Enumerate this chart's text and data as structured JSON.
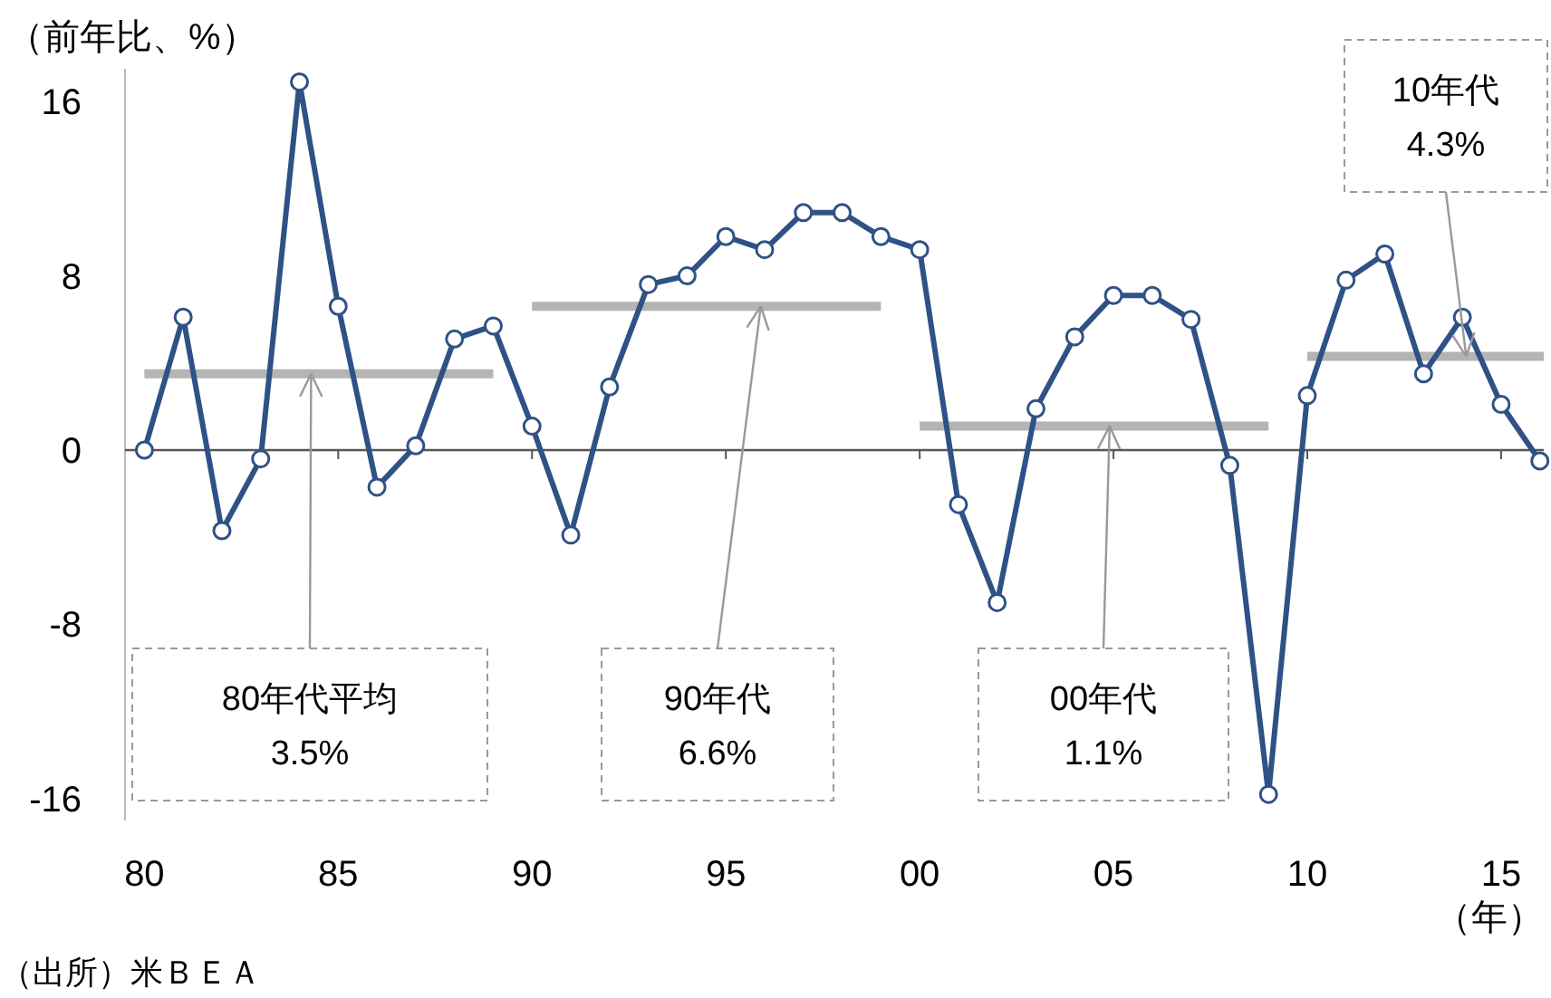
{
  "chart_data": {
    "type": "line",
    "ylabel": "（前年比、%）",
    "xlabel": "（年）",
    "x": [
      1980,
      1981,
      1982,
      1983,
      1984,
      1985,
      1986,
      1987,
      1988,
      1989,
      1990,
      1991,
      1992,
      1993,
      1994,
      1995,
      1996,
      1997,
      1998,
      1999,
      2000,
      2001,
      2002,
      2003,
      2004,
      2005,
      2006,
      2007,
      2008,
      2009,
      2010,
      2011,
      2012,
      2013,
      2014,
      2015,
      2016
    ],
    "xlim": [
      1979.5,
      2016.1
    ],
    "xticks": [
      {
        "value": 1980,
        "label": "80"
      },
      {
        "value": 1985,
        "label": "85"
      },
      {
        "value": 1990,
        "label": "90"
      },
      {
        "value": 1995,
        "label": "95"
      },
      {
        "value": 2000,
        "label": "00"
      },
      {
        "value": 2005,
        "label": "05"
      },
      {
        "value": 2010,
        "label": "10"
      },
      {
        "value": 2015,
        "label": "15"
      }
    ],
    "ylim": [
      -17,
      17.5
    ],
    "yticks": [
      -16,
      -8,
      0,
      8,
      16
    ],
    "series": [
      {
        "color": "#2f5286",
        "marker": "circle",
        "values": [
          0,
          6.1,
          -3.7,
          -0.4,
          16.9,
          6.6,
          -1.7,
          0.2,
          5.1,
          5.7,
          1.1,
          -3.9,
          2.9,
          7.6,
          8.0,
          9.8,
          9.2,
          10.9,
          10.9,
          9.8,
          9.2,
          -2.5,
          -7.0,
          1.9,
          5.2,
          7.1,
          7.1,
          6.0,
          -0.7,
          -15.8,
          2.5,
          7.8,
          9.0,
          3.5,
          6.1,
          2.1,
          -0.5
        ]
      },
      {
        "color": "#b4b4b4",
        "marker": "none",
        "x": [
          1980,
          1989
        ],
        "values": [
          3.5,
          3.5
        ]
      },
      {
        "color": "#b4b4b4",
        "marker": "none",
        "x": [
          1990,
          1999
        ],
        "values": [
          6.6,
          6.6
        ]
      },
      {
        "color": "#b4b4b4",
        "marker": "none",
        "x": [
          2000,
          2009
        ],
        "values": [
          1.1,
          1.1
        ]
      },
      {
        "color": "#b4b4b4",
        "marker": "none",
        "x": [
          2010,
          2016.1
        ],
        "values": [
          4.3,
          4.3
        ]
      }
    ],
    "annotations": [
      {
        "text": "80年代平均\n3.5%",
        "x": 1984.3,
        "y": 3.5
      },
      {
        "text": "90年代\n6.6%",
        "x": 1995.9,
        "y": 6.6
      },
      {
        "text": "00年代\n1.1%",
        "x": 2004.9,
        "y": 1.1
      },
      {
        "text": "10年代\n4.3%",
        "x": 2014.1,
        "y": 4.3
      },
      "（出所）米ＢＥＡ"
    ]
  }
}
